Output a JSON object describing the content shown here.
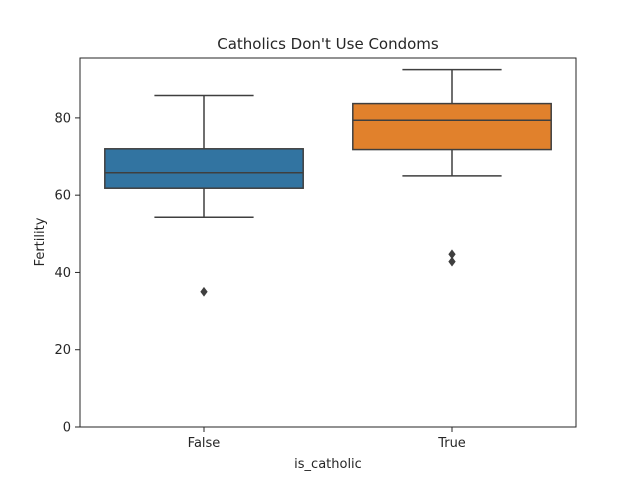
{
  "chart_data": {
    "type": "box",
    "title": "Catholics Don't Use Condoms",
    "xlabel": "is_catholic",
    "ylabel": "Fertility",
    "categories": [
      "False",
      "True"
    ],
    "ylim": [
      0,
      95.5
    ],
    "yticks": [
      0,
      20,
      40,
      60,
      80
    ],
    "grid": false,
    "boxes": [
      {
        "category": "False",
        "whisker_low": 54.3,
        "q1": 61.8,
        "median": 65.8,
        "q3": 72.0,
        "whisker_high": 85.8,
        "outliers": [
          35.0
        ],
        "color": "#3274a1"
      },
      {
        "category": "True",
        "whisker_low": 65.0,
        "q1": 71.8,
        "median": 79.4,
        "q3": 83.7,
        "whisker_high": 92.5,
        "outliers": [
          44.7,
          42.8
        ],
        "color": "#e1812c"
      }
    ],
    "line_color": "#3f3f3f"
  }
}
